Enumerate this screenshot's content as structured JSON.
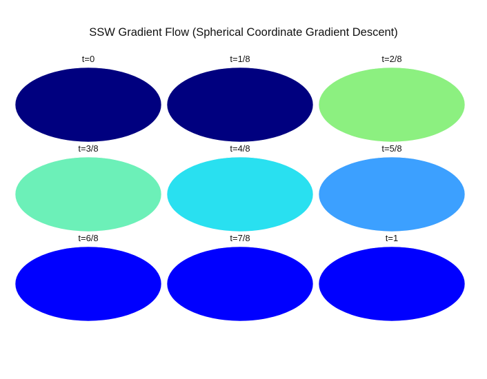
{
  "figure": {
    "title": "SSW Gradient Flow (Spherical Coordinate Gradient Descent)"
  },
  "panels": [
    {
      "label": "t=0",
      "state": "initial-blob-left"
    },
    {
      "label": "t=1/8",
      "state": "spreading-left"
    },
    {
      "label": "t=2/8",
      "state": "spreading-wide"
    },
    {
      "label": "t=3/8",
      "state": "bands-forming"
    },
    {
      "label": "t=4/8",
      "state": "spots-emerging"
    },
    {
      "label": "t=5/8",
      "state": "spots-forming"
    },
    {
      "label": "t=6/8",
      "state": "spots-stable"
    },
    {
      "label": "t=7/8",
      "state": "spots-stable"
    },
    {
      "label": "t=1",
      "state": "spots-final"
    }
  ],
  "colormap": {
    "name": "jet",
    "stops": [
      "#00007f",
      "#0000ff",
      "#00ffff",
      "#ffff00",
      "#ff0000",
      "#7f0000"
    ]
  }
}
